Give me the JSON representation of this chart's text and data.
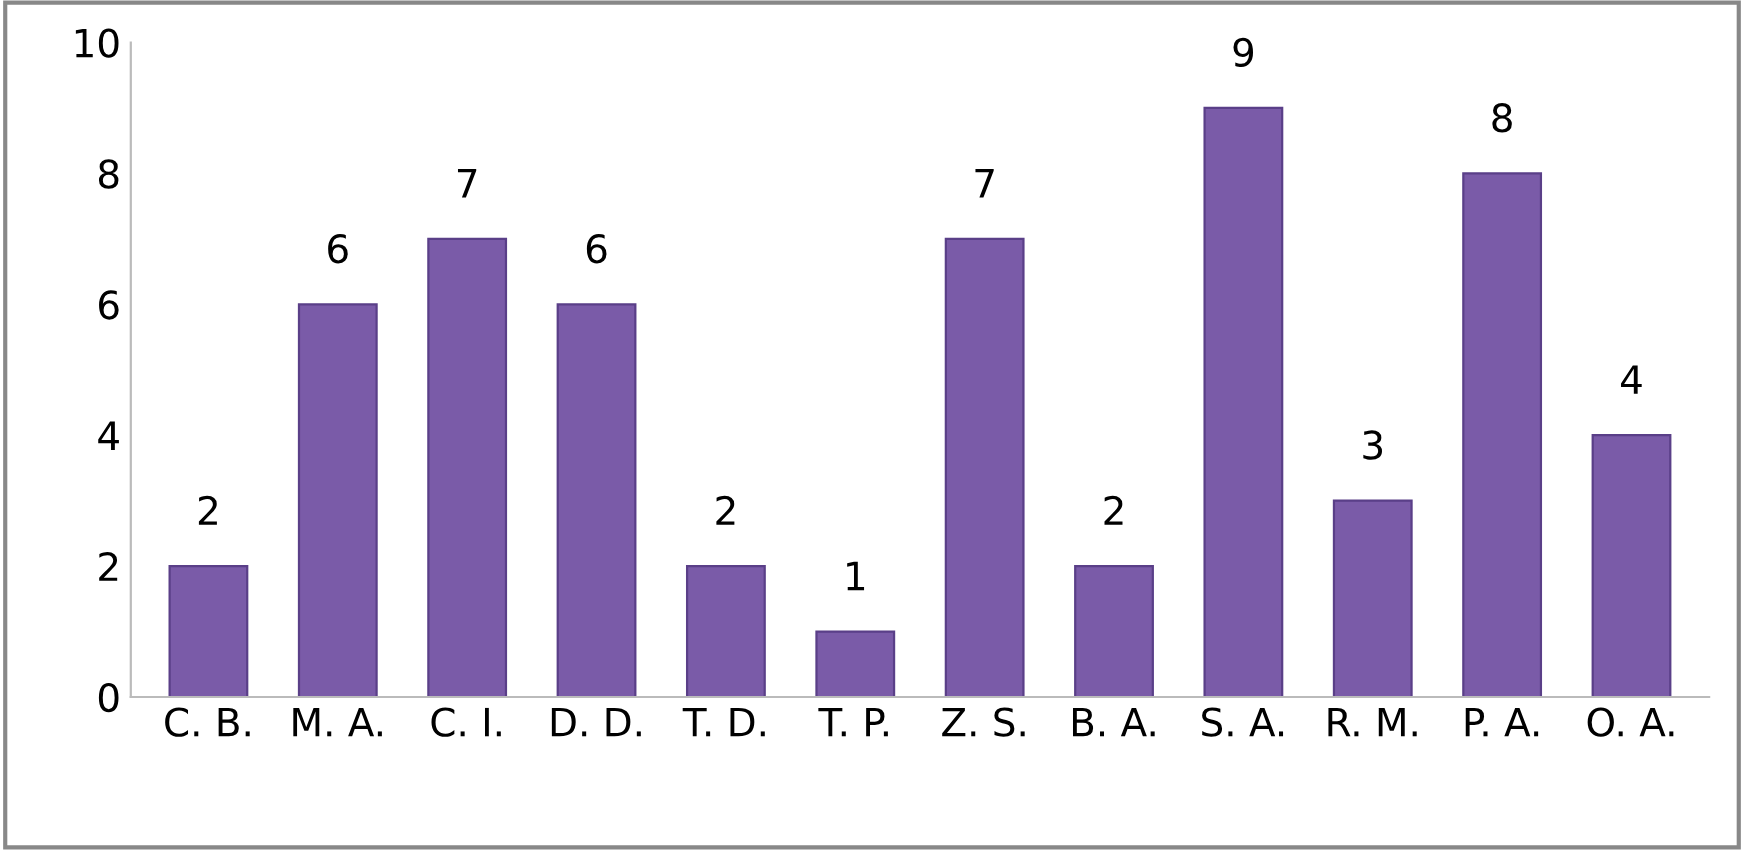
{
  "chart_data": {
    "type": "bar",
    "categories": [
      "C. B.",
      "M. A.",
      "C. I.",
      "D. D.",
      "T. D.",
      "T. P.",
      "Z. S.",
      "B. A.",
      "S. A.",
      "R. M.",
      "P. A.",
      "O. A."
    ],
    "values": [
      2,
      6,
      7,
      6,
      2,
      1,
      7,
      2,
      9,
      3,
      8,
      4
    ],
    "color": "#7a5ba8",
    "ylim": [
      0,
      10
    ],
    "yticks": [
      0,
      2,
      4,
      6,
      8,
      10
    ],
    "grid": false,
    "data_labels": true
  }
}
